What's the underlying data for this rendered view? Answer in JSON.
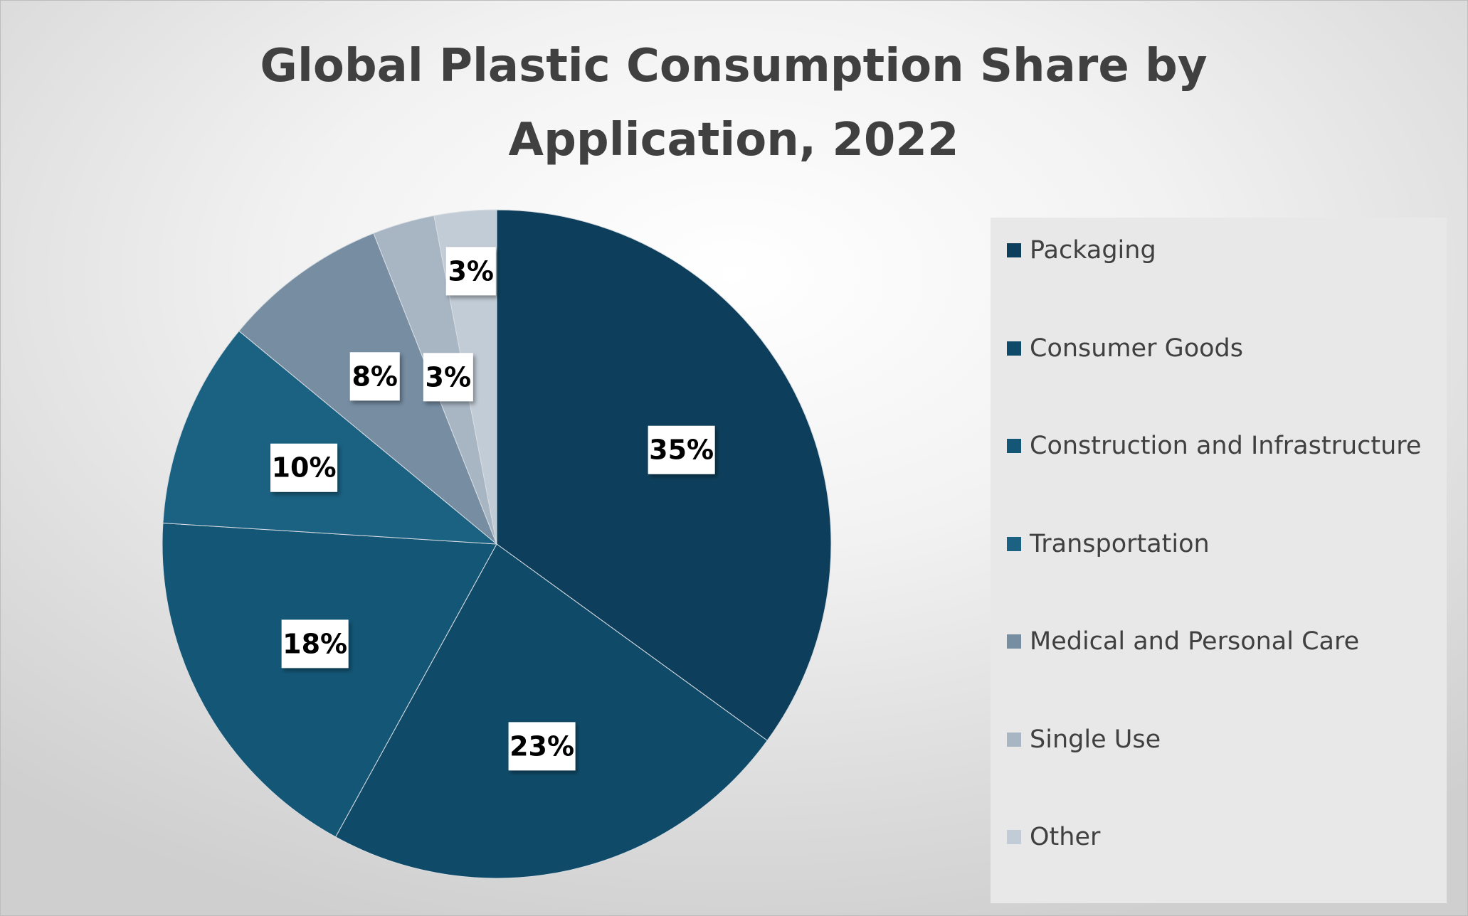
{
  "chart_data": {
    "type": "pie",
    "title": "Global Plastic Consumption Share by Application, 2022",
    "categories": [
      "Packaging",
      "Consumer Goods",
      "Construction and Infrastructure",
      "Transportation",
      "Medical and Personal Care",
      "Single Use",
      "Other"
    ],
    "values": [
      35,
      23,
      18,
      10,
      8,
      3,
      3
    ],
    "data_labels": [
      "35%",
      "23%",
      "18%",
      "10%",
      "8%",
      "3%",
      "3%"
    ],
    "colors": [
      "#0d3f5c",
      "#0f4b69",
      "#135675",
      "#1a6182",
      "#768da2",
      "#a8b6c4",
      "#c2ccd6"
    ],
    "legend_position": "right",
    "start_angle_deg": 0,
    "direction": "clockwise"
  }
}
